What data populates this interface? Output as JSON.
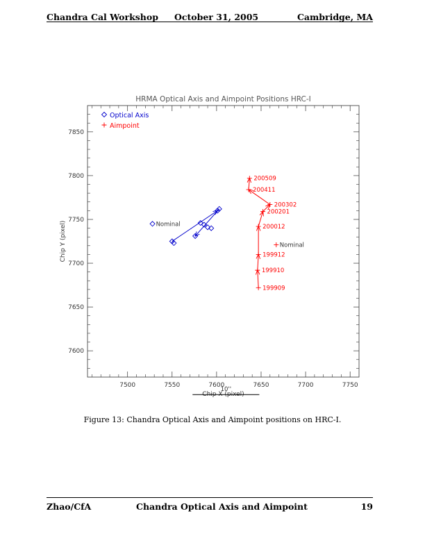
{
  "header": {
    "left": "Chandra Cal Workshop",
    "center": "October 31, 2005",
    "right": "Cambridge, MA"
  },
  "footer": {
    "left": "Zhao/CfA",
    "center": "Chandra Optical Axis and Aimpoint",
    "page": "19"
  },
  "caption": "Figure 13: Chandra Optical Axis and Aimpoint positions on HRC-I.",
  "colors": {
    "optical_axis": "#0000cc",
    "aimpoint": "#ff0000"
  },
  "chart_data": {
    "type": "scatter",
    "title": "HRMA Optical Axis and Aimpoint Positions   HRC-I",
    "xlabel": "Chip X (pixel)",
    "ylabel": "Chip Y (pixel)",
    "xlim": [
      7455,
      7760
    ],
    "ylim": [
      7570,
      7880
    ],
    "xticks": [
      7500,
      7550,
      7600,
      7650,
      7700,
      7750
    ],
    "yticks": [
      7600,
      7650,
      7700,
      7750,
      7800,
      7850
    ],
    "legend_position": "top-left",
    "scale_bar": {
      "label": "10''",
      "x_start": 7573,
      "x_end": 7648,
      "y": 7550
    },
    "series": [
      {
        "name": "Optical Axis",
        "marker": "diamond",
        "color": "#0000cc",
        "points": [
          {
            "x": 7550,
            "y": 7725
          },
          {
            "x": 7552,
            "y": 7723
          },
          {
            "x": 7576,
            "y": 7731
          },
          {
            "x": 7582,
            "y": 7746
          },
          {
            "x": 7586,
            "y": 7744
          },
          {
            "x": 7590,
            "y": 7741
          },
          {
            "x": 7594,
            "y": 7740
          },
          {
            "x": 7601,
            "y": 7760
          },
          {
            "x": 7603,
            "y": 7762
          }
        ],
        "arrows": [
          {
            "from": 0,
            "to": 7
          },
          {
            "from": 8,
            "to": 2
          }
        ],
        "nominal": {
          "x": 7528,
          "y": 7745,
          "label": "Nominal"
        }
      },
      {
        "name": "Aimpoint",
        "marker": "plus",
        "color": "#ff0000",
        "points": [
          {
            "x": 7647,
            "y": 7672,
            "label": "199909"
          },
          {
            "x": 7646,
            "y": 7692,
            "label": "199910"
          },
          {
            "x": 7647,
            "y": 7710,
            "label": "199912"
          },
          {
            "x": 7647,
            "y": 7742,
            "label": "200012"
          },
          {
            "x": 7652,
            "y": 7759,
            "label": "200201"
          },
          {
            "x": 7660,
            "y": 7767,
            "label": "200302"
          },
          {
            "x": 7636,
            "y": 7784,
            "label": "200411"
          },
          {
            "x": 7637,
            "y": 7797,
            "label": "200509"
          }
        ],
        "nominal": {
          "x": 7667,
          "y": 7721,
          "label": "Nominal"
        }
      }
    ]
  }
}
